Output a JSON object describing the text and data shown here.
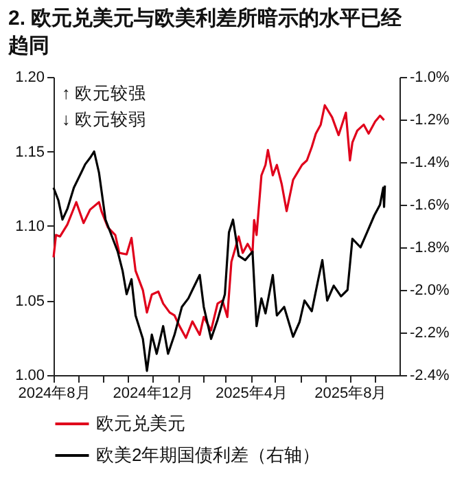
{
  "chart_data": {
    "type": "line",
    "title": "2. 欧元兑美元与欧美利差所暗示的水平已经趋同",
    "annotations": [
      "↑ 欧元较强",
      "↓ 欧元较弱"
    ],
    "xlim": [
      "2024-08-01",
      "2025-10-01"
    ],
    "xticks": [
      {
        "value": "2024-08-01",
        "label": "2024年8月"
      },
      {
        "value": "2024-09-01",
        "label": null
      },
      {
        "value": "2024-10-01",
        "label": null
      },
      {
        "value": "2024-11-01",
        "label": null
      },
      {
        "value": "2024-12-01",
        "label": "2024年12月"
      },
      {
        "value": "2025-01-01",
        "label": null
      },
      {
        "value": "2025-02-01",
        "label": null
      },
      {
        "value": "2025-03-01",
        "label": null
      },
      {
        "value": "2025-04-01",
        "label": "2025年4月"
      },
      {
        "value": "2025-05-01",
        "label": null
      },
      {
        "value": "2025-06-01",
        "label": null
      },
      {
        "value": "2025-07-01",
        "label": null
      },
      {
        "value": "2025-08-01",
        "label": "2025年8月"
      },
      {
        "value": "2025-09-01",
        "label": null
      }
    ],
    "ylim": [
      1.0,
      1.2
    ],
    "yticks": [
      {
        "value": 1.0,
        "label": "1.00"
      },
      {
        "value": 1.05,
        "label": "1.05"
      },
      {
        "value": 1.1,
        "label": "1.10"
      },
      {
        "value": 1.15,
        "label": "1.15"
      },
      {
        "value": 1.2,
        "label": "1.20"
      }
    ],
    "y2lim": [
      -2.4,
      -1.0
    ],
    "y2ticks": [
      {
        "value": -2.4,
        "label": "-2.4%"
      },
      {
        "value": -2.2,
        "label": "-2.2%"
      },
      {
        "value": -2.0,
        "label": "-2.0%"
      },
      {
        "value": -1.8,
        "label": "-1.8%"
      },
      {
        "value": -1.6,
        "label": "-1.6%"
      },
      {
        "value": -1.4,
        "label": "-1.4%"
      },
      {
        "value": -1.2,
        "label": "-1.2%"
      },
      {
        "value": -1.0,
        "label": "-1.0%"
      }
    ],
    "legend": "bottom",
    "line_style": "solid",
    "marker": "none",
    "series": [
      {
        "name": "欧元兑美元",
        "color": "#e0001b",
        "x": [
          "2024-08-01",
          "2024-08-04",
          "2024-08-09",
          "2024-08-18",
          "2024-08-29",
          "2024-09-07",
          "2024-09-15",
          "2024-09-26",
          "2024-09-29",
          "2024-10-07",
          "2024-10-16",
          "2024-10-21",
          "2024-10-30",
          "2024-11-05",
          "2024-11-10",
          "2024-11-19",
          "2024-11-24",
          "2024-11-30",
          "2024-12-08",
          "2024-12-14",
          "2024-12-22",
          "2024-12-28",
          "2025-01-03",
          "2025-01-11",
          "2025-01-19",
          "2025-01-28",
          "2025-02-02",
          "2025-02-11",
          "2025-02-19",
          "2025-02-25",
          "2025-03-03",
          "2025-03-08",
          "2025-03-17",
          "2025-03-22",
          "2025-03-28",
          "2025-04-03",
          "2025-04-05",
          "2025-04-08",
          "2025-04-14",
          "2025-04-19",
          "2025-04-22",
          "2025-04-28",
          "2025-05-03",
          "2025-05-09",
          "2025-05-15",
          "2025-05-23",
          "2025-06-03",
          "2025-06-09",
          "2025-06-15",
          "2025-06-20",
          "2025-06-26",
          "2025-07-01",
          "2025-07-10",
          "2025-07-18",
          "2025-07-27",
          "2025-08-01",
          "2025-08-04",
          "2025-08-10",
          "2025-08-18",
          "2025-08-24",
          "2025-09-01",
          "2025-09-07",
          "2025-09-12"
        ],
        "values": [
          1.079,
          1.094,
          1.093,
          1.101,
          1.116,
          1.102,
          1.111,
          1.116,
          1.11,
          1.099,
          1.094,
          1.082,
          1.081,
          1.092,
          1.07,
          1.057,
          1.042,
          1.054,
          1.056,
          1.048,
          1.042,
          1.04,
          1.033,
          1.025,
          1.036,
          1.027,
          1.039,
          1.03,
          1.048,
          1.05,
          1.039,
          1.076,
          1.093,
          1.082,
          1.088,
          1.082,
          1.104,
          1.094,
          1.134,
          1.141,
          1.151,
          1.134,
          1.141,
          1.128,
          1.11,
          1.131,
          1.141,
          1.144,
          1.153,
          1.162,
          1.168,
          1.181,
          1.173,
          1.161,
          1.176,
          1.144,
          1.156,
          1.164,
          1.168,
          1.162,
          1.17,
          1.174,
          1.171
        ]
      },
      {
        "name": "欧美2年期国债利差（右轴）",
        "color": "#000000",
        "axis": "y2",
        "x": [
          "2024-08-01",
          "2024-08-07",
          "2024-08-12",
          "2024-08-18",
          "2024-08-26",
          "2024-09-04",
          "2024-09-09",
          "2024-09-15",
          "2024-09-20",
          "2024-09-26",
          "2024-10-04",
          "2024-10-10",
          "2024-10-19",
          "2024-10-25",
          "2024-10-30",
          "2024-11-05",
          "2024-11-10",
          "2024-11-19",
          "2024-11-24",
          "2024-11-30",
          "2024-12-06",
          "2024-12-14",
          "2024-12-20",
          "2024-12-28",
          "2025-01-06",
          "2025-01-14",
          "2025-01-19",
          "2025-01-28",
          "2025-02-02",
          "2025-02-11",
          "2025-02-19",
          "2025-02-28",
          "2025-03-05",
          "2025-03-10",
          "2025-03-17",
          "2025-03-25",
          "2025-04-03",
          "2025-04-08",
          "2025-04-14",
          "2025-04-19",
          "2025-04-28",
          "2025-05-03",
          "2025-05-12",
          "2025-05-23",
          "2025-05-31",
          "2025-06-06",
          "2025-06-15",
          "2025-06-23",
          "2025-06-28",
          "2025-07-04",
          "2025-07-12",
          "2025-07-21",
          "2025-07-29",
          "2025-08-04",
          "2025-08-14",
          "2025-08-22",
          "2025-08-31",
          "2025-09-07",
          "2025-09-11",
          "2025-09-12",
          "2025-09-13"
        ],
        "values": [
          -1.52,
          -1.58,
          -1.67,
          -1.62,
          -1.52,
          -1.45,
          -1.41,
          -1.38,
          -1.35,
          -1.45,
          -1.67,
          -1.73,
          -1.82,
          -1.91,
          -2.02,
          -1.95,
          -2.12,
          -2.23,
          -2.38,
          -2.21,
          -2.3,
          -2.17,
          -2.3,
          -2.21,
          -2.08,
          -2.04,
          -2.0,
          -1.93,
          -2.08,
          -2.23,
          -2.14,
          -2.02,
          -1.73,
          -1.67,
          -1.84,
          -1.86,
          -1.82,
          -2.17,
          -2.04,
          -2.11,
          -1.93,
          -2.12,
          -2.08,
          -2.22,
          -2.15,
          -2.05,
          -2.1,
          -1.95,
          -1.86,
          -2.05,
          -1.98,
          -2.03,
          -2.0,
          -1.76,
          -1.8,
          -1.73,
          -1.65,
          -1.6,
          -1.52,
          -1.61,
          -1.51
        ]
      }
    ]
  }
}
